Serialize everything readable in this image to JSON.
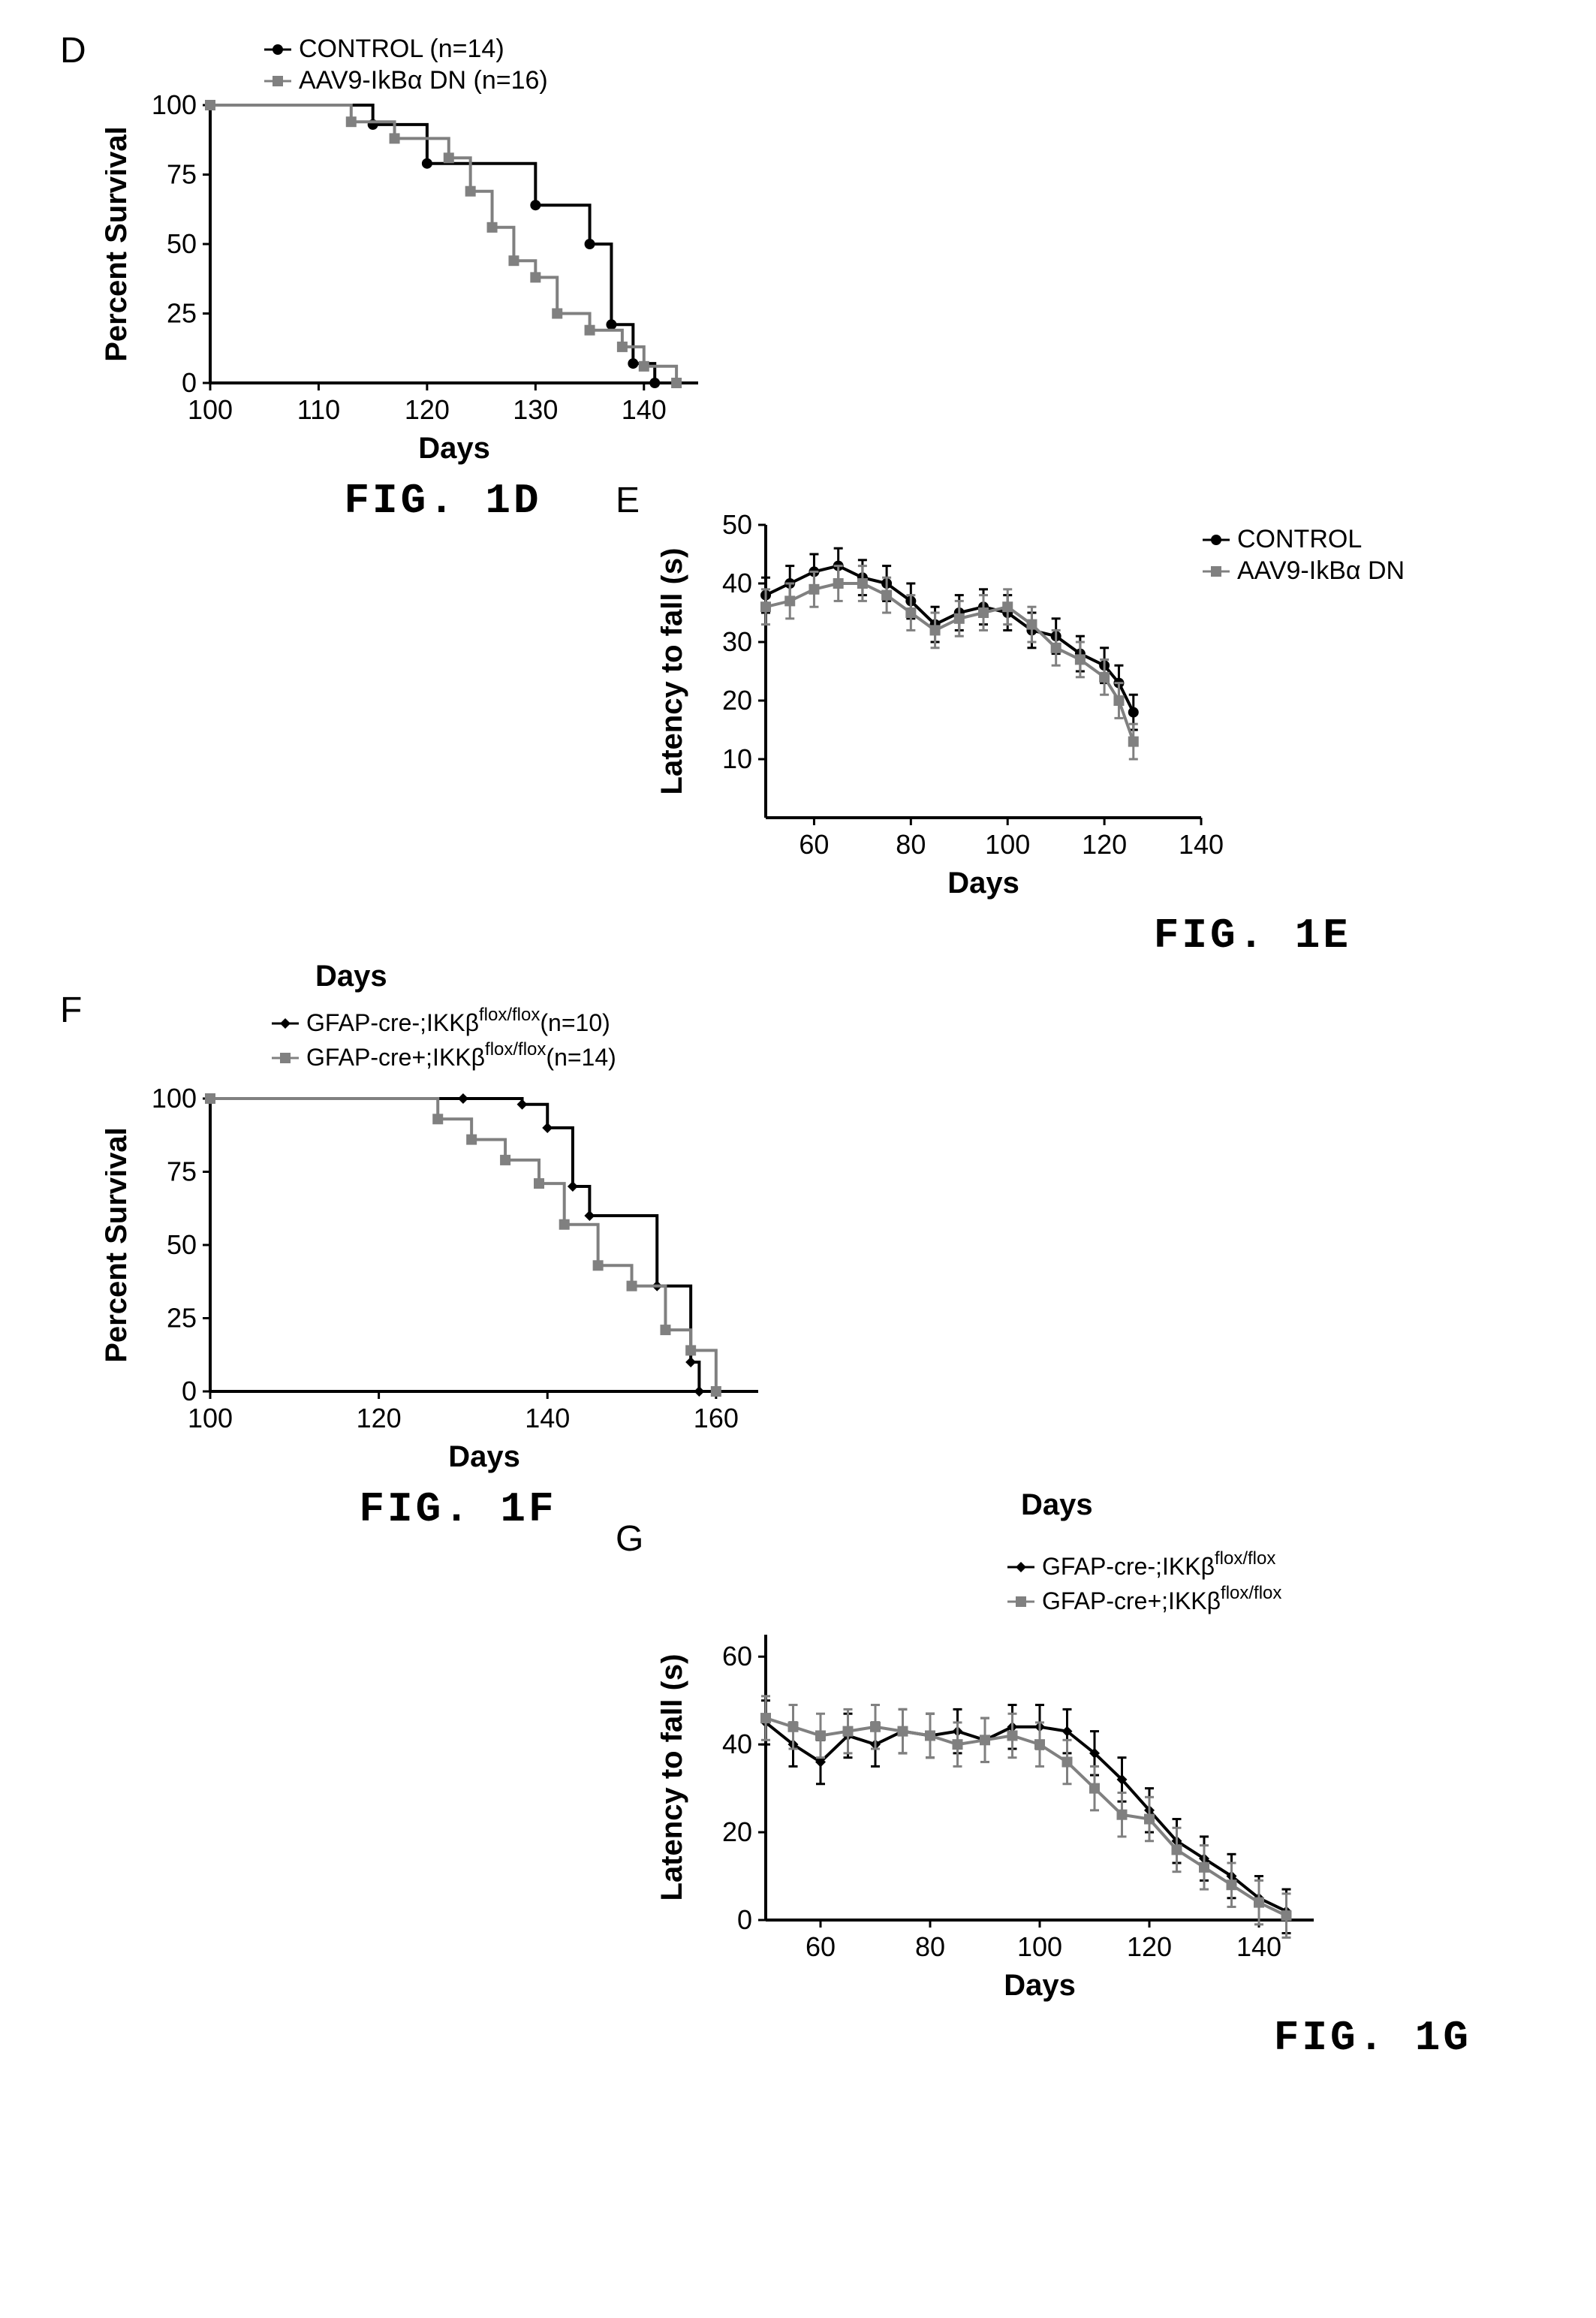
{
  "panelD": {
    "label": "D",
    "type": "survival",
    "caption": "FIG. 1D",
    "ylabel": "Percent Survival",
    "xlabel": "Days",
    "xlim": [
      100,
      145
    ],
    "ylim": [
      0,
      100
    ],
    "xticks": [
      100,
      110,
      120,
      130,
      140
    ],
    "yticks": [
      0,
      25,
      50,
      75,
      100
    ],
    "legend": [
      {
        "label": "CONTROL (n=14)",
        "color": "#000000",
        "marker": "circle"
      },
      {
        "label": "AAV9-IkBα DN (n=16)",
        "color": "#808080",
        "marker": "square"
      }
    ],
    "series": [
      {
        "name": "control",
        "color": "#000000",
        "points": [
          [
            100,
            100
          ],
          [
            115,
            100
          ],
          [
            115,
            93
          ],
          [
            120,
            93
          ],
          [
            120,
            79
          ],
          [
            130,
            79
          ],
          [
            130,
            64
          ],
          [
            135,
            64
          ],
          [
            135,
            50
          ],
          [
            137,
            50
          ],
          [
            137,
            21
          ],
          [
            139,
            21
          ],
          [
            139,
            7
          ],
          [
            141,
            7
          ],
          [
            141,
            0
          ]
        ]
      },
      {
        "name": "aav9",
        "color": "#808080",
        "points": [
          [
            100,
            100
          ],
          [
            113,
            100
          ],
          [
            113,
            94
          ],
          [
            117,
            94
          ],
          [
            117,
            88
          ],
          [
            122,
            88
          ],
          [
            122,
            81
          ],
          [
            124,
            81
          ],
          [
            124,
            69
          ],
          [
            126,
            69
          ],
          [
            126,
            56
          ],
          [
            128,
            56
          ],
          [
            128,
            44
          ],
          [
            130,
            44
          ],
          [
            130,
            38
          ],
          [
            132,
            38
          ],
          [
            132,
            25
          ],
          [
            135,
            25
          ],
          [
            135,
            19
          ],
          [
            138,
            19
          ],
          [
            138,
            13
          ],
          [
            140,
            13
          ],
          [
            140,
            6
          ],
          [
            143,
            6
          ],
          [
            143,
            0
          ]
        ]
      }
    ],
    "background": "#ffffff",
    "axis_color": "#000000",
    "axis_width": 4
  },
  "panelE": {
    "label": "E",
    "type": "line",
    "caption": "FIG. 1E",
    "ylabel": "Latency to fall (s)",
    "xlabel": "Days",
    "xlim": [
      50,
      140
    ],
    "ylim": [
      0,
      50
    ],
    "xticks": [
      60,
      80,
      100,
      120,
      140
    ],
    "yticks": [
      10,
      20,
      30,
      40,
      50
    ],
    "legend": [
      {
        "label": "CONTROL",
        "color": "#000000",
        "marker": "circle"
      },
      {
        "label": "AAV9-IkBα DN",
        "color": "#808080",
        "marker": "square"
      }
    ],
    "series": [
      {
        "name": "control",
        "color": "#000000",
        "points": [
          [
            50,
            38
          ],
          [
            55,
            40
          ],
          [
            60,
            42
          ],
          [
            65,
            43
          ],
          [
            70,
            41
          ],
          [
            75,
            40
          ],
          [
            80,
            37
          ],
          [
            85,
            33
          ],
          [
            90,
            35
          ],
          [
            95,
            36
          ],
          [
            100,
            35
          ],
          [
            105,
            32
          ],
          [
            110,
            31
          ],
          [
            115,
            28
          ],
          [
            120,
            26
          ],
          [
            123,
            23
          ],
          [
            126,
            18
          ]
        ],
        "err": 3
      },
      {
        "name": "aav9",
        "color": "#808080",
        "points": [
          [
            50,
            36
          ],
          [
            55,
            37
          ],
          [
            60,
            39
          ],
          [
            65,
            40
          ],
          [
            70,
            40
          ],
          [
            75,
            38
          ],
          [
            80,
            35
          ],
          [
            85,
            32
          ],
          [
            90,
            34
          ],
          [
            95,
            35
          ],
          [
            100,
            36
          ],
          [
            105,
            33
          ],
          [
            110,
            29
          ],
          [
            115,
            27
          ],
          [
            120,
            24
          ],
          [
            123,
            20
          ],
          [
            126,
            13
          ]
        ],
        "err": 3
      }
    ],
    "background": "#ffffff",
    "axis_color": "#000000",
    "axis_width": 4
  },
  "panelF": {
    "label": "F",
    "type": "survival",
    "caption": "FIG. 1F",
    "ylabel": "Percent Survival",
    "xlabel": "Days",
    "extra_title": "Days",
    "xlim": [
      100,
      165
    ],
    "ylim": [
      0,
      100
    ],
    "xticks": [
      100,
      120,
      140,
      160
    ],
    "yticks": [
      0,
      25,
      50,
      75,
      100
    ],
    "legend": [
      {
        "label_prefix": "GFAP-cre-;IKKβ",
        "label_super": "flox/flox",
        "label_suffix": "(n=10)",
        "color": "#000000",
        "marker": "diamond"
      },
      {
        "label_prefix": "GFAP-cre+;IKKβ",
        "label_super": "flox/flox",
        "label_suffix": "(n=14)",
        "color": "#808080",
        "marker": "square"
      }
    ],
    "series": [
      {
        "name": "cre-",
        "color": "#000000",
        "points": [
          [
            100,
            100
          ],
          [
            130,
            100
          ],
          [
            130,
            100
          ],
          [
            137,
            100
          ],
          [
            137,
            98
          ],
          [
            140,
            98
          ],
          [
            140,
            90
          ],
          [
            143,
            90
          ],
          [
            143,
            70
          ],
          [
            145,
            70
          ],
          [
            145,
            60
          ],
          [
            153,
            60
          ],
          [
            153,
            36
          ],
          [
            157,
            36
          ],
          [
            157,
            10
          ],
          [
            158,
            10
          ],
          [
            158,
            0
          ]
        ]
      },
      {
        "name": "cre+",
        "color": "#808080",
        "points": [
          [
            100,
            100
          ],
          [
            127,
            100
          ],
          [
            127,
            93
          ],
          [
            131,
            93
          ],
          [
            131,
            86
          ],
          [
            135,
            86
          ],
          [
            135,
            79
          ],
          [
            139,
            79
          ],
          [
            139,
            71
          ],
          [
            142,
            71
          ],
          [
            142,
            57
          ],
          [
            146,
            57
          ],
          [
            146,
            43
          ],
          [
            150,
            43
          ],
          [
            150,
            36
          ],
          [
            154,
            36
          ],
          [
            154,
            21
          ],
          [
            157,
            21
          ],
          [
            157,
            14
          ],
          [
            160,
            14
          ],
          [
            160,
            0
          ]
        ]
      }
    ],
    "background": "#ffffff",
    "axis_color": "#000000",
    "axis_width": 4
  },
  "panelG": {
    "label": "G",
    "type": "line",
    "caption": "FIG. 1G",
    "ylabel": "Latency to fall (s)",
    "xlabel": "Days",
    "extra_title": "Days",
    "xlim": [
      50,
      150
    ],
    "ylim": [
      0,
      65
    ],
    "xticks": [
      60,
      80,
      100,
      120,
      140
    ],
    "yticks": [
      0,
      20,
      40,
      60
    ],
    "legend": [
      {
        "label_prefix": "GFAP-cre-;IKKβ",
        "label_super": "flox/flox",
        "label_suffix": "",
        "color": "#000000",
        "marker": "diamond"
      },
      {
        "label_prefix": "GFAP-cre+;IKKβ",
        "label_super": "flox/flox",
        "label_suffix": "",
        "color": "#808080",
        "marker": "square"
      }
    ],
    "series": [
      {
        "name": "cre-",
        "color": "#000000",
        "points": [
          [
            50,
            45
          ],
          [
            55,
            40
          ],
          [
            60,
            36
          ],
          [
            65,
            42
          ],
          [
            70,
            40
          ],
          [
            75,
            43
          ],
          [
            80,
            42
          ],
          [
            85,
            43
          ],
          [
            90,
            41
          ],
          [
            95,
            44
          ],
          [
            100,
            44
          ],
          [
            105,
            43
          ],
          [
            110,
            38
          ],
          [
            115,
            32
          ],
          [
            120,
            25
          ],
          [
            125,
            18
          ],
          [
            130,
            14
          ],
          [
            135,
            10
          ],
          [
            140,
            5
          ],
          [
            145,
            2
          ]
        ],
        "err": 5
      },
      {
        "name": "cre+",
        "color": "#808080",
        "points": [
          [
            50,
            46
          ],
          [
            55,
            44
          ],
          [
            60,
            42
          ],
          [
            65,
            43
          ],
          [
            70,
            44
          ],
          [
            75,
            43
          ],
          [
            80,
            42
          ],
          [
            85,
            40
          ],
          [
            90,
            41
          ],
          [
            95,
            42
          ],
          [
            100,
            40
          ],
          [
            105,
            36
          ],
          [
            110,
            30
          ],
          [
            115,
            24
          ],
          [
            120,
            23
          ],
          [
            125,
            16
          ],
          [
            130,
            12
          ],
          [
            135,
            8
          ],
          [
            140,
            4
          ],
          [
            145,
            1
          ]
        ],
        "err": 5
      }
    ],
    "background": "#ffffff",
    "axis_color": "#000000",
    "axis_width": 4
  }
}
